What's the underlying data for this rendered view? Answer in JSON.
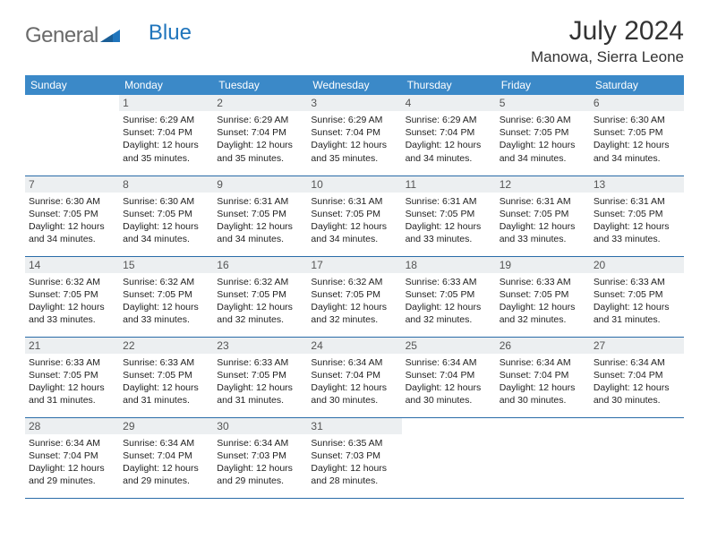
{
  "logo": {
    "general": "General",
    "blue": "Blue"
  },
  "header": {
    "title": "July 2024",
    "location": "Manowa, Sierra Leone"
  },
  "colors": {
    "header_bg": "#3b89c8",
    "daynum_bg": "#eceff1",
    "divider": "#2a6ca8",
    "logo_gray": "#6a6a6a",
    "logo_blue": "#2075bc"
  },
  "weekdays": [
    "Sunday",
    "Monday",
    "Tuesday",
    "Wednesday",
    "Thursday",
    "Friday",
    "Saturday"
  ],
  "weeks": [
    [
      {
        "day": "",
        "sunrise": "",
        "sunset": "",
        "daylight_a": "",
        "daylight_b": ""
      },
      {
        "day": "1",
        "sunrise": "Sunrise: 6:29 AM",
        "sunset": "Sunset: 7:04 PM",
        "daylight_a": "Daylight: 12 hours",
        "daylight_b": "and 35 minutes."
      },
      {
        "day": "2",
        "sunrise": "Sunrise: 6:29 AM",
        "sunset": "Sunset: 7:04 PM",
        "daylight_a": "Daylight: 12 hours",
        "daylight_b": "and 35 minutes."
      },
      {
        "day": "3",
        "sunrise": "Sunrise: 6:29 AM",
        "sunset": "Sunset: 7:04 PM",
        "daylight_a": "Daylight: 12 hours",
        "daylight_b": "and 35 minutes."
      },
      {
        "day": "4",
        "sunrise": "Sunrise: 6:29 AM",
        "sunset": "Sunset: 7:04 PM",
        "daylight_a": "Daylight: 12 hours",
        "daylight_b": "and 34 minutes."
      },
      {
        "day": "5",
        "sunrise": "Sunrise: 6:30 AM",
        "sunset": "Sunset: 7:05 PM",
        "daylight_a": "Daylight: 12 hours",
        "daylight_b": "and 34 minutes."
      },
      {
        "day": "6",
        "sunrise": "Sunrise: 6:30 AM",
        "sunset": "Sunset: 7:05 PM",
        "daylight_a": "Daylight: 12 hours",
        "daylight_b": "and 34 minutes."
      }
    ],
    [
      {
        "day": "7",
        "sunrise": "Sunrise: 6:30 AM",
        "sunset": "Sunset: 7:05 PM",
        "daylight_a": "Daylight: 12 hours",
        "daylight_b": "and 34 minutes."
      },
      {
        "day": "8",
        "sunrise": "Sunrise: 6:30 AM",
        "sunset": "Sunset: 7:05 PM",
        "daylight_a": "Daylight: 12 hours",
        "daylight_b": "and 34 minutes."
      },
      {
        "day": "9",
        "sunrise": "Sunrise: 6:31 AM",
        "sunset": "Sunset: 7:05 PM",
        "daylight_a": "Daylight: 12 hours",
        "daylight_b": "and 34 minutes."
      },
      {
        "day": "10",
        "sunrise": "Sunrise: 6:31 AM",
        "sunset": "Sunset: 7:05 PM",
        "daylight_a": "Daylight: 12 hours",
        "daylight_b": "and 34 minutes."
      },
      {
        "day": "11",
        "sunrise": "Sunrise: 6:31 AM",
        "sunset": "Sunset: 7:05 PM",
        "daylight_a": "Daylight: 12 hours",
        "daylight_b": "and 33 minutes."
      },
      {
        "day": "12",
        "sunrise": "Sunrise: 6:31 AM",
        "sunset": "Sunset: 7:05 PM",
        "daylight_a": "Daylight: 12 hours",
        "daylight_b": "and 33 minutes."
      },
      {
        "day": "13",
        "sunrise": "Sunrise: 6:31 AM",
        "sunset": "Sunset: 7:05 PM",
        "daylight_a": "Daylight: 12 hours",
        "daylight_b": "and 33 minutes."
      }
    ],
    [
      {
        "day": "14",
        "sunrise": "Sunrise: 6:32 AM",
        "sunset": "Sunset: 7:05 PM",
        "daylight_a": "Daylight: 12 hours",
        "daylight_b": "and 33 minutes."
      },
      {
        "day": "15",
        "sunrise": "Sunrise: 6:32 AM",
        "sunset": "Sunset: 7:05 PM",
        "daylight_a": "Daylight: 12 hours",
        "daylight_b": "and 33 minutes."
      },
      {
        "day": "16",
        "sunrise": "Sunrise: 6:32 AM",
        "sunset": "Sunset: 7:05 PM",
        "daylight_a": "Daylight: 12 hours",
        "daylight_b": "and 32 minutes."
      },
      {
        "day": "17",
        "sunrise": "Sunrise: 6:32 AM",
        "sunset": "Sunset: 7:05 PM",
        "daylight_a": "Daylight: 12 hours",
        "daylight_b": "and 32 minutes."
      },
      {
        "day": "18",
        "sunrise": "Sunrise: 6:33 AM",
        "sunset": "Sunset: 7:05 PM",
        "daylight_a": "Daylight: 12 hours",
        "daylight_b": "and 32 minutes."
      },
      {
        "day": "19",
        "sunrise": "Sunrise: 6:33 AM",
        "sunset": "Sunset: 7:05 PM",
        "daylight_a": "Daylight: 12 hours",
        "daylight_b": "and 32 minutes."
      },
      {
        "day": "20",
        "sunrise": "Sunrise: 6:33 AM",
        "sunset": "Sunset: 7:05 PM",
        "daylight_a": "Daylight: 12 hours",
        "daylight_b": "and 31 minutes."
      }
    ],
    [
      {
        "day": "21",
        "sunrise": "Sunrise: 6:33 AM",
        "sunset": "Sunset: 7:05 PM",
        "daylight_a": "Daylight: 12 hours",
        "daylight_b": "and 31 minutes."
      },
      {
        "day": "22",
        "sunrise": "Sunrise: 6:33 AM",
        "sunset": "Sunset: 7:05 PM",
        "daylight_a": "Daylight: 12 hours",
        "daylight_b": "and 31 minutes."
      },
      {
        "day": "23",
        "sunrise": "Sunrise: 6:33 AM",
        "sunset": "Sunset: 7:05 PM",
        "daylight_a": "Daylight: 12 hours",
        "daylight_b": "and 31 minutes."
      },
      {
        "day": "24",
        "sunrise": "Sunrise: 6:34 AM",
        "sunset": "Sunset: 7:04 PM",
        "daylight_a": "Daylight: 12 hours",
        "daylight_b": "and 30 minutes."
      },
      {
        "day": "25",
        "sunrise": "Sunrise: 6:34 AM",
        "sunset": "Sunset: 7:04 PM",
        "daylight_a": "Daylight: 12 hours",
        "daylight_b": "and 30 minutes."
      },
      {
        "day": "26",
        "sunrise": "Sunrise: 6:34 AM",
        "sunset": "Sunset: 7:04 PM",
        "daylight_a": "Daylight: 12 hours",
        "daylight_b": "and 30 minutes."
      },
      {
        "day": "27",
        "sunrise": "Sunrise: 6:34 AM",
        "sunset": "Sunset: 7:04 PM",
        "daylight_a": "Daylight: 12 hours",
        "daylight_b": "and 30 minutes."
      }
    ],
    [
      {
        "day": "28",
        "sunrise": "Sunrise: 6:34 AM",
        "sunset": "Sunset: 7:04 PM",
        "daylight_a": "Daylight: 12 hours",
        "daylight_b": "and 29 minutes."
      },
      {
        "day": "29",
        "sunrise": "Sunrise: 6:34 AM",
        "sunset": "Sunset: 7:04 PM",
        "daylight_a": "Daylight: 12 hours",
        "daylight_b": "and 29 minutes."
      },
      {
        "day": "30",
        "sunrise": "Sunrise: 6:34 AM",
        "sunset": "Sunset: 7:03 PM",
        "daylight_a": "Daylight: 12 hours",
        "daylight_b": "and 29 minutes."
      },
      {
        "day": "31",
        "sunrise": "Sunrise: 6:35 AM",
        "sunset": "Sunset: 7:03 PM",
        "daylight_a": "Daylight: 12 hours",
        "daylight_b": "and 28 minutes."
      },
      {
        "day": "",
        "sunrise": "",
        "sunset": "",
        "daylight_a": "",
        "daylight_b": ""
      },
      {
        "day": "",
        "sunrise": "",
        "sunset": "",
        "daylight_a": "",
        "daylight_b": ""
      },
      {
        "day": "",
        "sunrise": "",
        "sunset": "",
        "daylight_a": "",
        "daylight_b": ""
      }
    ]
  ]
}
